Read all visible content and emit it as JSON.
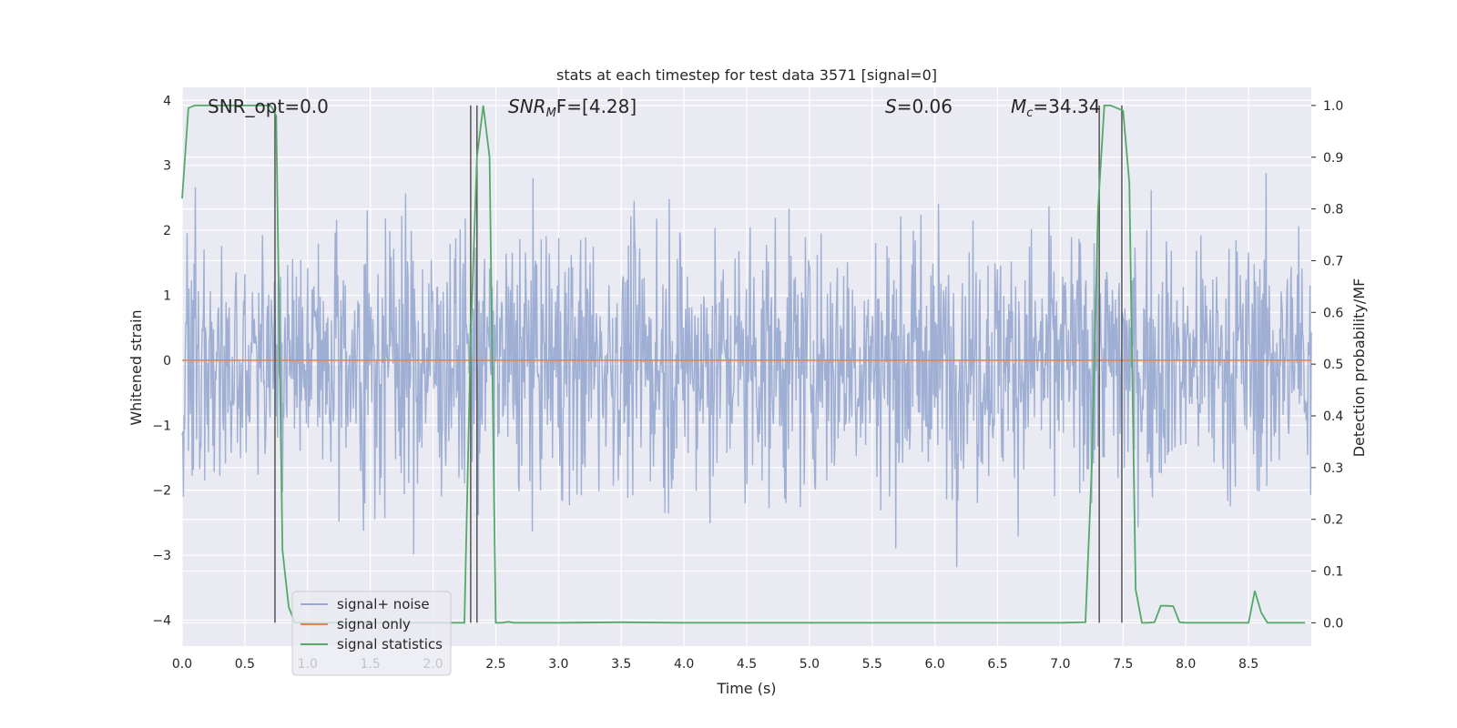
{
  "chart_data": {
    "type": "line",
    "title": "stats at each timestep for test data 3571 [signal=0]",
    "xlabel": "Time (s)",
    "ylabel_left": "Whitened strain",
    "ylabel_right": "Detection probability/MF",
    "xlim": [
      0,
      9.0
    ],
    "ylim_left": [
      -4.4,
      4.2
    ],
    "ylim_right": [
      -0.045,
      1.035
    ],
    "x_ticks": [
      "0.0",
      "0.5",
      "1.0",
      "1.5",
      "2.0",
      "2.5",
      "3.0",
      "3.5",
      "4.0",
      "4.5",
      "5.0",
      "5.5",
      "6.0",
      "6.5",
      "7.0",
      "7.5",
      "8.0",
      "8.5"
    ],
    "y_ticks_left": [
      "4",
      "3",
      "2",
      "1",
      "0",
      "−1",
      "−2",
      "−3",
      "−4"
    ],
    "y_ticks_right": [
      "1.0",
      "0.9",
      "0.8",
      "0.7",
      "0.6",
      "0.5",
      "0.4",
      "0.3",
      "0.2",
      "0.1",
      "0.0"
    ],
    "grid": true,
    "legend_placement": "lower-left",
    "annotations": {
      "snr_opt": "SNR_opt=0.0",
      "snr_mf_label": "SNR",
      "snr_mf_sub": "M",
      "snr_mf_rest": "F=[4.28]",
      "s_label": "S",
      "s_value": "=0.06",
      "mc_label": "M",
      "mc_sub": "c",
      "mc_value": "=34.34"
    },
    "series": [
      {
        "name": "signal+ noise",
        "color": "#97a9d0",
        "description_values": "noise strain, approx. within [-3.8, 3.9], dense band ±1.6"
      },
      {
        "name": "signal only",
        "color": "#dd8452",
        "x": [
          0,
          9.0
        ],
        "y": [
          0,
          0
        ]
      },
      {
        "name": "signal statistics",
        "color": "#55a868",
        "x": [
          0.0,
          0.05,
          0.1,
          0.15,
          0.25,
          0.5,
          0.65,
          0.7,
          0.72,
          0.75,
          0.8,
          0.85,
          0.9,
          1.0,
          1.5,
          2.0,
          2.2,
          2.25,
          2.3,
          2.35,
          2.4,
          2.45,
          2.5,
          2.55,
          2.6,
          2.65,
          2.7,
          3.0,
          3.5,
          4.0,
          5.0,
          6.0,
          7.0,
          7.2,
          7.25,
          7.3,
          7.35,
          7.4,
          7.45,
          7.5,
          7.55,
          7.6,
          7.65,
          7.7,
          7.75,
          7.8,
          7.85,
          7.9,
          7.95,
          8.0,
          8.5,
          8.55,
          8.6,
          8.65,
          8.7,
          8.95
        ],
        "y": [
          0.82,
          0.995,
          1.0,
          1.0,
          1.0,
          1.0,
          1.0,
          1.0,
          0.995,
          0.98,
          0.14,
          0.03,
          0.0,
          0.0,
          0.0,
          0.0,
          0.0,
          0.0,
          0.55,
          0.9,
          1.0,
          0.9,
          0.0,
          0.0,
          0.002,
          0.0,
          0.0,
          0.0,
          0.001,
          0.0,
          0.0,
          0.0,
          0.0,
          0.001,
          0.3,
          0.8,
          1.0,
          1.0,
          0.995,
          0.99,
          0.85,
          0.065,
          0.0,
          0.0,
          0.001,
          0.033,
          0.033,
          0.032,
          0.001,
          0.0,
          0.0,
          0.062,
          0.02,
          0.0,
          0.0,
          0.0
        ]
      }
    ],
    "vertical_markers_x": [
      0.74,
      2.3,
      2.35,
      7.31,
      7.49
    ]
  }
}
